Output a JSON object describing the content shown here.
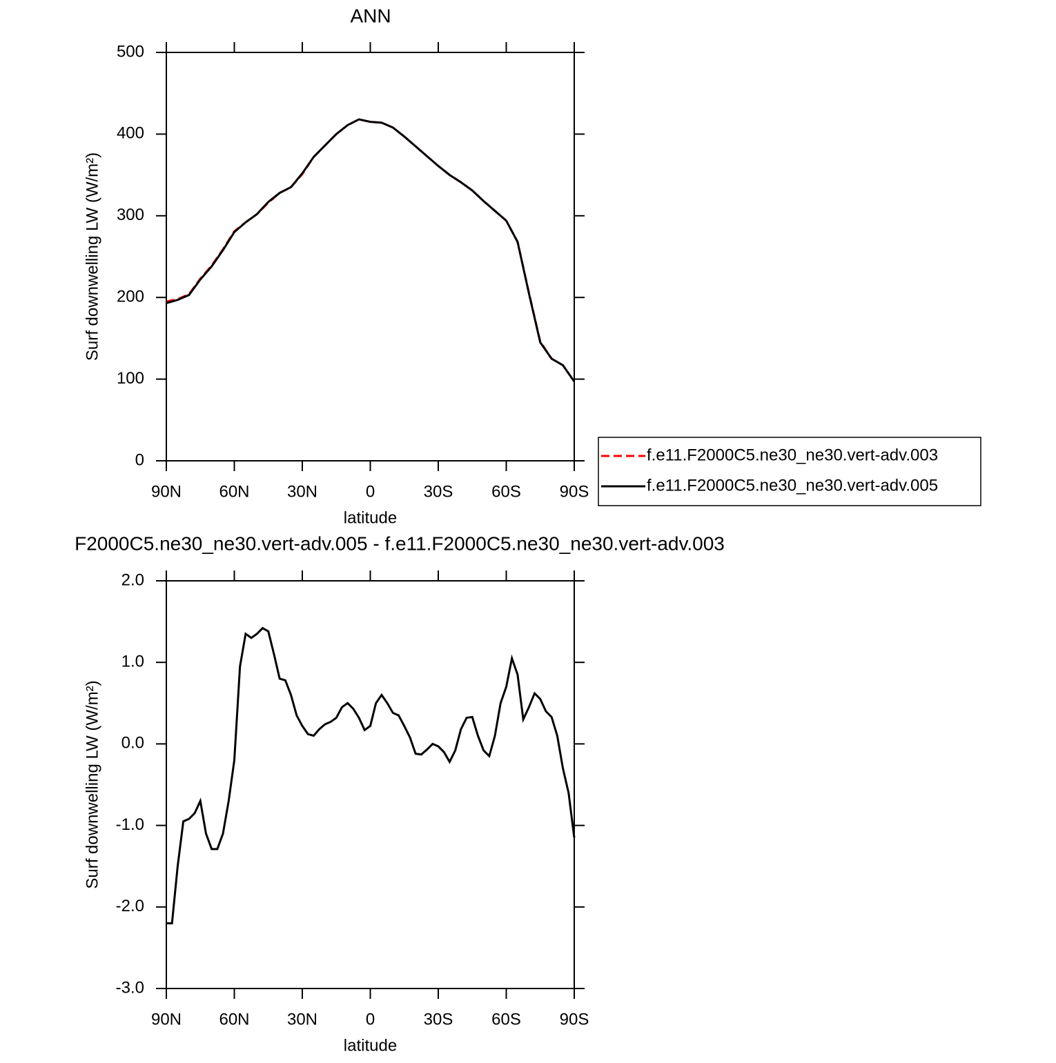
{
  "chart_data": [
    {
      "type": "line",
      "title": "ANN",
      "xlabel": "latitude",
      "ylabel": "Surf downwelling LW (W/m²)",
      "x": [
        90,
        85,
        80,
        75,
        70,
        65,
        60,
        55,
        50,
        45,
        40,
        35,
        30,
        25,
        20,
        15,
        10,
        5,
        0,
        -5,
        -10,
        -15,
        -20,
        -25,
        -30,
        -35,
        -40,
        -45,
        -50,
        -55,
        -60,
        -65,
        -70,
        -75,
        -80,
        -85,
        -90
      ],
      "series": [
        {
          "name": "f.e11.F2000C5.ne30_ne30.vert-adv.003",
          "color": "#ff0000",
          "linestyle": "dashed",
          "values": [
            195,
            198,
            204,
            223,
            239,
            259,
            281,
            292,
            302,
            316,
            328,
            335,
            351,
            372,
            386,
            400,
            411,
            418,
            415,
            414,
            408,
            397,
            385,
            373,
            361,
            350,
            341,
            331,
            318,
            306,
            294,
            268,
            206,
            146,
            125,
            117,
            97
          ]
        },
        {
          "name": "f.e11.F2000C5.ne30_ne30.vert-adv.005",
          "color": "#000000",
          "linestyle": "solid",
          "values": [
            193,
            197,
            203,
            222,
            238,
            258,
            280,
            292,
            302,
            317,
            328,
            335,
            352,
            372,
            386,
            400,
            411,
            418,
            415,
            414,
            408,
            397,
            385,
            373,
            361,
            350,
            341,
            331,
            318,
            306,
            294,
            268,
            205,
            145,
            125,
            117,
            97
          ]
        }
      ],
      "xlim": [
        90,
        -90
      ],
      "xticks": [
        {
          "value": 90,
          "label": "90N"
        },
        {
          "value": 60,
          "label": "60N"
        },
        {
          "value": 30,
          "label": "30N"
        },
        0,
        {
          "value": -30,
          "label": "30S"
        },
        {
          "value": -60,
          "label": "60S"
        },
        {
          "value": -90,
          "label": "90S"
        }
      ],
      "ylim": [
        0,
        500
      ],
      "yticks": [
        0,
        100,
        200,
        300,
        400,
        500
      ],
      "legend": "right"
    },
    {
      "type": "line",
      "title": "F2000C5.ne30_ne30.vert-adv.005 - f.e11.F2000C5.ne30_ne30.vert-adv.003",
      "xlabel": "latitude",
      "ylabel": "Surf downwelling LW (W/m²)",
      "x": [
        90,
        87.5,
        85,
        82.5,
        80,
        77.5,
        75,
        72.5,
        70,
        67.5,
        65,
        62.5,
        60,
        57.5,
        55,
        52.5,
        50,
        47.5,
        45,
        42.5,
        40,
        37.5,
        35,
        32.5,
        30,
        27.5,
        25,
        22.5,
        20,
        17.5,
        15,
        12.5,
        10,
        7.5,
        5,
        2.5,
        0,
        -2.5,
        -5,
        -7.5,
        -10,
        -12.5,
        -15,
        -17.5,
        -20,
        -22.5,
        -25,
        -27.5,
        -30,
        -32.5,
        -35,
        -37.5,
        -40,
        -42.5,
        -45,
        -47.5,
        -50,
        -52.5,
        -55,
        -57.5,
        -60,
        -62.5,
        -65,
        -67.5,
        -70,
        -72.5,
        -75,
        -77.5,
        -80,
        -82.5,
        -85,
        -87.5,
        -90
      ],
      "series": [
        {
          "color": "#000000",
          "linestyle": "solid",
          "values": [
            -2.2,
            -2.2,
            -1.5,
            -0.95,
            -0.92,
            -0.85,
            -0.7,
            -1.1,
            -1.29,
            -1.29,
            -1.1,
            -0.7,
            -0.2,
            0.95,
            1.35,
            1.3,
            1.35,
            1.42,
            1.38,
            1.1,
            0.8,
            0.78,
            0.6,
            0.35,
            0.22,
            0.12,
            0.1,
            0.18,
            0.24,
            0.27,
            0.32,
            0.45,
            0.5,
            0.43,
            0.32,
            0.17,
            0.22,
            0.5,
            0.6,
            0.5,
            0.38,
            0.35,
            0.22,
            0.08,
            -0.12,
            -0.13,
            -0.07,
            0.0,
            -0.03,
            -0.1,
            -0.22,
            -0.08,
            0.18,
            0.32,
            0.33,
            0.1,
            -0.08,
            -0.15,
            0.1,
            0.5,
            0.7,
            1.05,
            0.85,
            0.3,
            0.45,
            0.62,
            0.55,
            0.4,
            0.33,
            0.1,
            -0.3,
            -0.6,
            -1.15
          ]
        }
      ],
      "xlim": [
        90,
        -90
      ],
      "xticks": [
        {
          "value": 90,
          "label": "90N"
        },
        {
          "value": 60,
          "label": "60N"
        },
        {
          "value": 30,
          "label": "30N"
        },
        0,
        {
          "value": -30,
          "label": "30S"
        },
        {
          "value": -60,
          "label": "60S"
        },
        {
          "value": -90,
          "label": "90S"
        }
      ],
      "ylim": [
        -3,
        2
      ],
      "yticks": [
        {
          "value": -3,
          "label": "-3.0"
        },
        {
          "value": -2,
          "label": "-2.0"
        },
        {
          "value": -1,
          "label": "-1.0"
        },
        {
          "value": 0,
          "label": "0.0"
        },
        {
          "value": 1,
          "label": "1.0"
        },
        {
          "value": 2,
          "label": "2.0"
        }
      ]
    }
  ]
}
